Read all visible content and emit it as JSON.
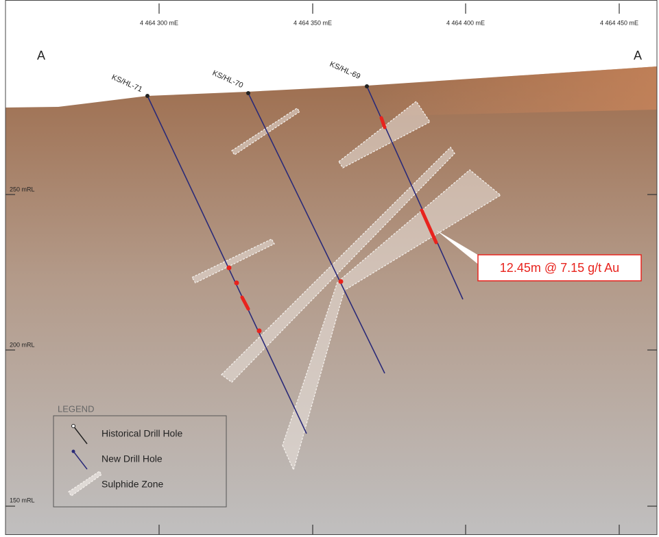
{
  "section_labels": [
    "A",
    "A"
  ],
  "eastings": [
    "4 464 300 mE",
    "4 464 350 mE",
    "4 464 400 mE",
    "4 464 450 mE"
  ],
  "elevations": [
    "250 mRL",
    "200 mRL",
    "150 mRL"
  ],
  "holes": [
    "KS/HL-71",
    "KS/HL-70",
    "KS/HL-69"
  ],
  "callout": "12.45m @ 7.15 g/t Au",
  "legend": {
    "title": "LEGEND",
    "items": [
      "Historical Drill Hole",
      "New Drill Hole",
      "Sulphide Zone"
    ]
  }
}
